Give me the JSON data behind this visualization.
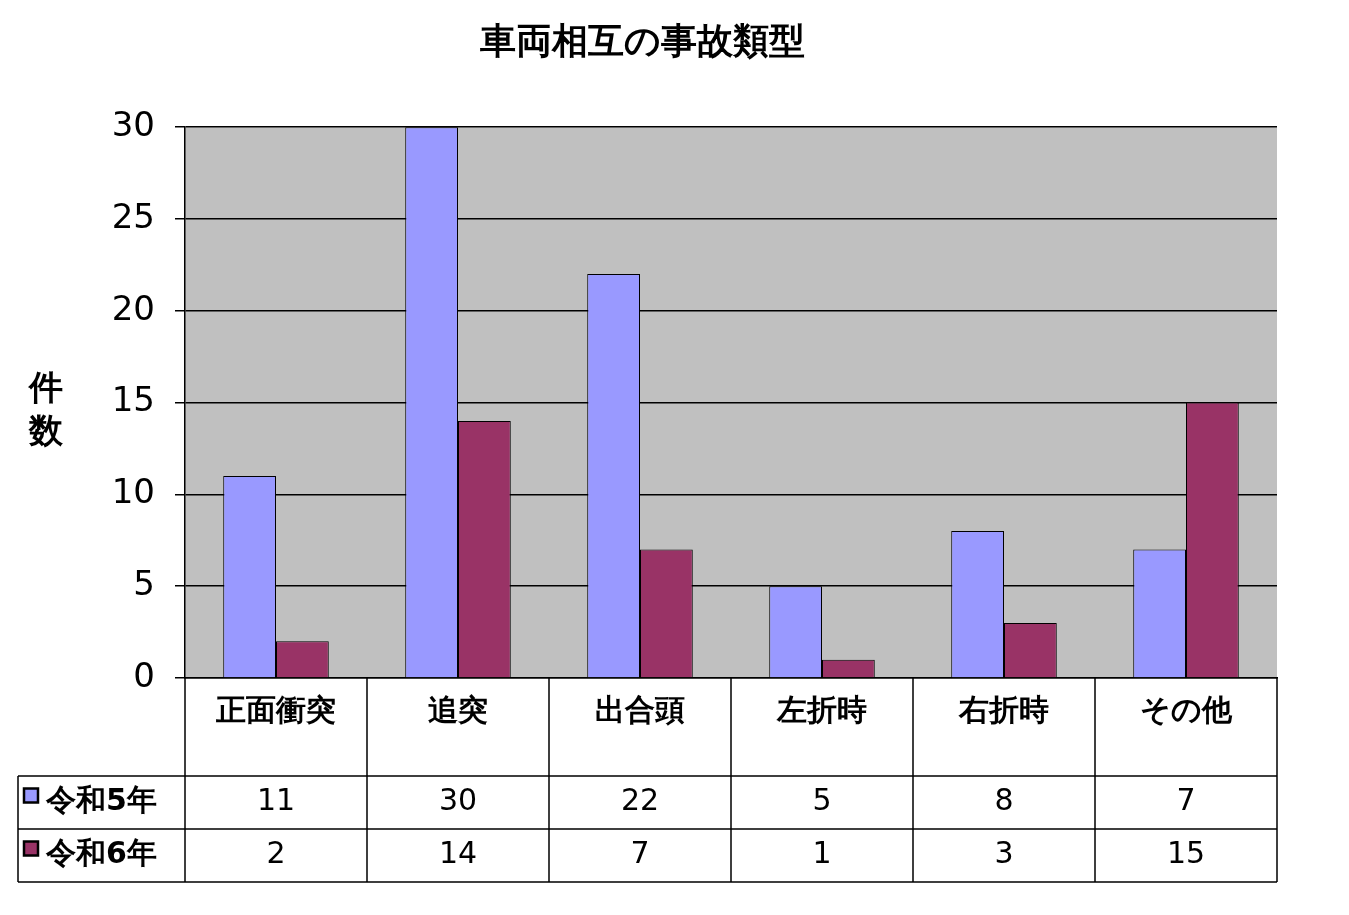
{
  "chart_data": {
    "type": "bar",
    "title": "車両相互の事故類型",
    "ylabel": "件数",
    "categories": [
      "正面衝突",
      "追突",
      "出合頭",
      "左折時",
      "右折時",
      "その他"
    ],
    "series": [
      {
        "name": "令和5年",
        "color": "#9999ff",
        "values": [
          11,
          30,
          22,
          5,
          8,
          7
        ]
      },
      {
        "name": "令和6年",
        "color": "#993366",
        "values": [
          2,
          14,
          7,
          1,
          3,
          15
        ]
      }
    ],
    "ylim": [
      0,
      30
    ],
    "yticks": [
      0,
      5,
      10,
      15,
      20,
      25,
      30
    ],
    "grid": "y",
    "legend": "bottom",
    "data_labels": true
  }
}
